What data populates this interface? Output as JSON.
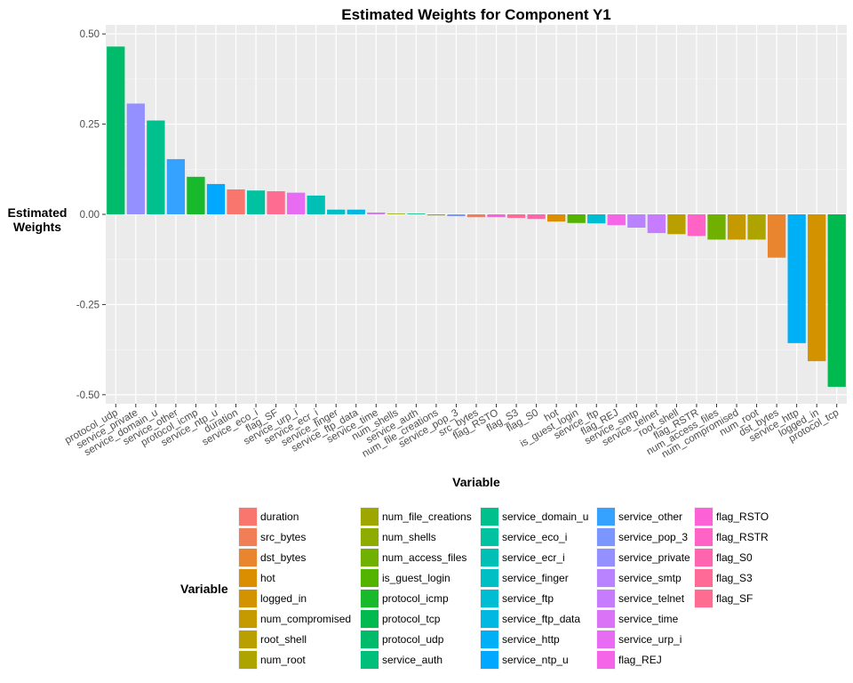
{
  "chart_data": {
    "type": "bar",
    "title": "Estimated Weights for Component Y1",
    "xlabel": "Variable",
    "ylabel": [
      "Estimated",
      "Weights"
    ],
    "ylim": [
      -0.525,
      0.525
    ],
    "yticks": [
      -0.5,
      -0.25,
      0.0,
      0.25,
      0.5
    ],
    "ytick_labels": [
      "-0.50",
      "-0.25",
      "0.00",
      "0.25",
      "0.50"
    ],
    "grid": true,
    "legend_title": "Variable",
    "legend_position": "bottom",
    "categories": [
      "protocol_udp",
      "service_private",
      "service_domain_u",
      "service_other",
      "protocol_icmp",
      "service_ntp_u",
      "duration",
      "service_eco_i",
      "flag_SF",
      "service_urp_i",
      "service_ecr_i",
      "service_finger",
      "service_ftp_data",
      "service_time",
      "num_shells",
      "service_auth",
      "num_file_creations",
      "service_pop_3",
      "src_bytes",
      "flag_RSTO",
      "flag_S3",
      "flag_S0",
      "hot",
      "is_guest_login",
      "service_ftp",
      "flag_REJ",
      "service_smtp",
      "service_telnet",
      "root_shell",
      "flag_RSTR",
      "num_access_files",
      "num_compromised",
      "num_root",
      "dst_bytes",
      "service_http",
      "logged_in",
      "protocol_tcp"
    ],
    "values": [
      0.465,
      0.307,
      0.26,
      0.153,
      0.104,
      0.084,
      0.069,
      0.066,
      0.064,
      0.06,
      0.052,
      0.013,
      0.013,
      0.005,
      0.002,
      0.002,
      -0.003,
      -0.005,
      -0.008,
      -0.008,
      -0.01,
      -0.013,
      -0.02,
      -0.024,
      -0.025,
      -0.03,
      -0.037,
      -0.052,
      -0.055,
      -0.06,
      -0.07,
      -0.07,
      -0.07,
      -0.12,
      -0.357,
      -0.407,
      -0.478
    ],
    "colors": {
      "duration": "#F8766D",
      "src_bytes": "#F07F58",
      "dst_bytes": "#E8852E",
      "hot": "#DB8E00",
      "logged_in": "#D39200",
      "num_compromised": "#C49A00",
      "root_shell": "#B9A000",
      "num_root": "#ADA400",
      "num_file_creations": "#9EA700",
      "num_shells": "#8EAB00",
      "num_access_files": "#6FB000",
      "is_guest_login": "#53B400",
      "protocol_icmp": "#18B92A",
      "protocol_tcp": "#00BA50",
      "protocol_udp": "#00BC6A",
      "service_auth": "#00BF7D",
      "service_domain_u": "#00C08E",
      "service_eco_i": "#00C1A0",
      "service_ecr_i": "#00C0B5",
      "service_finger": "#00BFC4",
      "service_ftp": "#00BDD4",
      "service_ftp_data": "#00B8E2",
      "service_http": "#00B0F6",
      "service_ntp_u": "#00A9FF",
      "service_other": "#35A2FF",
      "service_pop_3": "#7C96FF",
      "service_private": "#9590FF",
      "service_smtp": "#B983FF",
      "service_telnet": "#C77CFF",
      "service_time": "#DA73F5",
      "service_urp_i": "#E76BF3",
      "flag_REJ": "#F465E8",
      "flag_RSTO": "#FC61D5",
      "flag_RSTR": "#FF63C6",
      "flag_S0": "#FF65AE",
      "flag_S3": "#FF6B96",
      "flag_SF": "#FF6C91"
    },
    "legend": [
      [
        "duration",
        "src_bytes",
        "dst_bytes",
        "hot",
        "logged_in",
        "num_compromised",
        "root_shell",
        "num_root"
      ],
      [
        "num_file_creations",
        "num_shells",
        "num_access_files",
        "is_guest_login",
        "protocol_icmp",
        "protocol_tcp",
        "protocol_udp",
        "service_auth"
      ],
      [
        "service_domain_u",
        "service_eco_i",
        "service_ecr_i",
        "service_finger",
        "service_ftp",
        "service_ftp_data",
        "service_http",
        "service_ntp_u"
      ],
      [
        "service_other",
        "service_pop_3",
        "service_private",
        "service_smtp",
        "service_telnet",
        "service_time",
        "service_urp_i",
        "flag_REJ"
      ],
      [
        "flag_RSTO",
        "flag_RSTR",
        "flag_S0",
        "flag_S3",
        "flag_SF"
      ]
    ]
  }
}
